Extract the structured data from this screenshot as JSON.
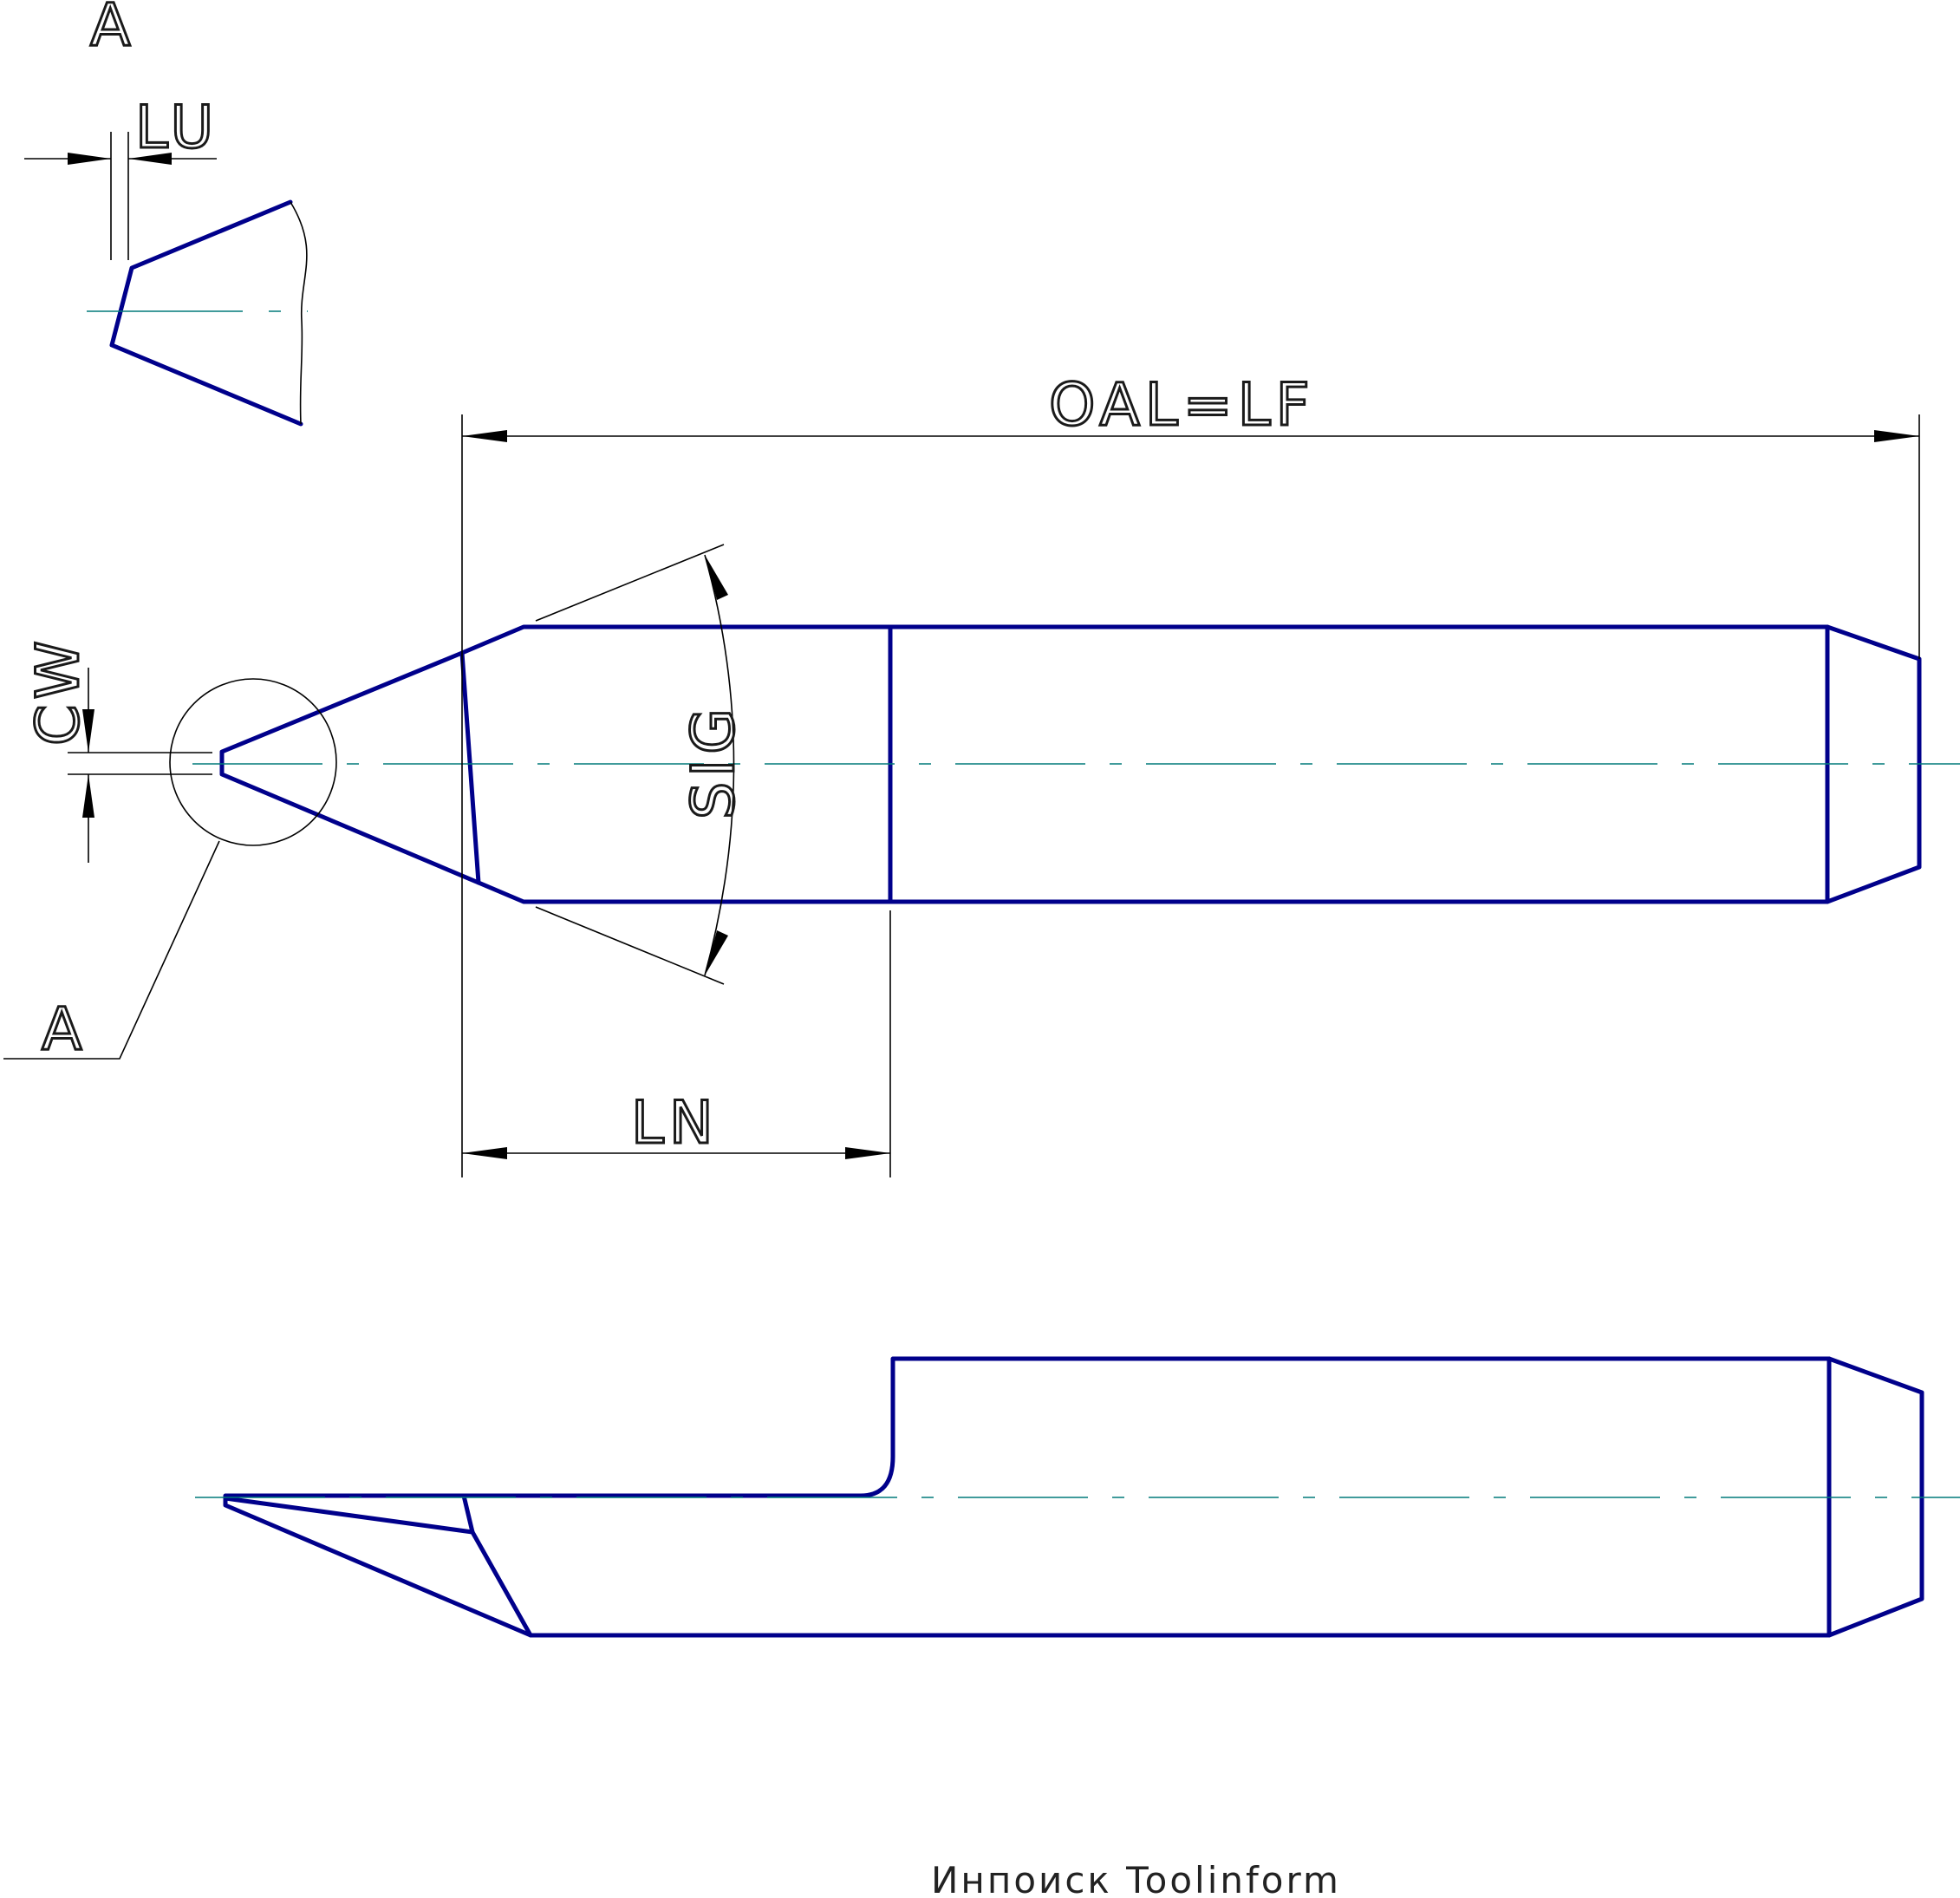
{
  "labels": {
    "detail_view": "A",
    "detail_ref": "A",
    "lu": "LU",
    "cw": "CW",
    "oal": "OAL=LF",
    "sig": "SIG",
    "ln": "LN"
  },
  "footer": "Инпоиск Toolinform",
  "colors": {
    "outline": "#00008b",
    "centerline": "#007a7a",
    "dimension": "#000000"
  }
}
